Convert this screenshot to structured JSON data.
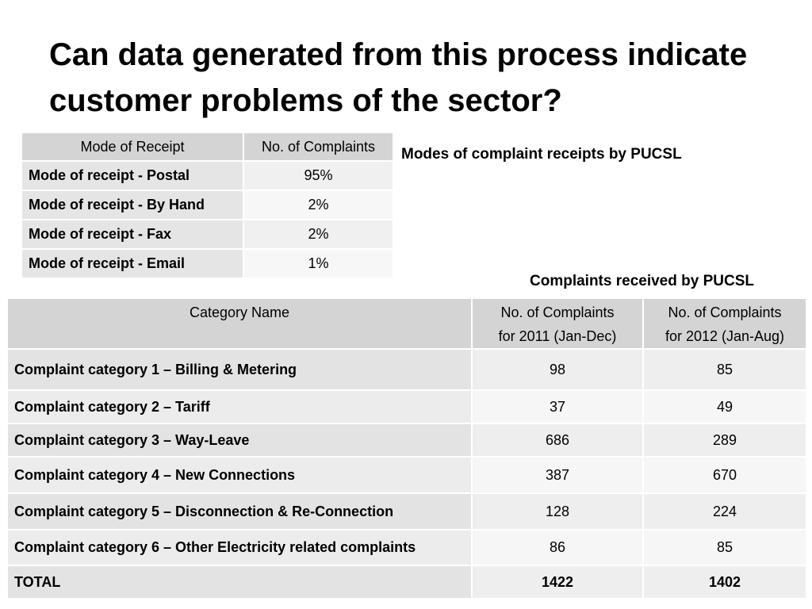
{
  "title": "Can data generated from this process indicate customer problems of the sector?",
  "receipts": {
    "caption": "Modes of complaint receipts by PUCSL",
    "headers": [
      "Mode of Receipt",
      "No. of Complaints"
    ],
    "rows": [
      {
        "mode": "Mode of receipt  - Postal",
        "value": "95%"
      },
      {
        "mode": "Mode of receipt  - By Hand",
        "value": "2%"
      },
      {
        "mode": "Mode of receipt  - Fax",
        "value": "2%"
      },
      {
        "mode": "Mode of receipt  - Email",
        "value": "1%"
      }
    ]
  },
  "complaints": {
    "caption": "Complaints received by PUCSL",
    "headers": {
      "category": "Category Name",
      "col2011_line1": "No. of Complaints",
      "col2011_line2": "for 2011 (Jan-Dec)",
      "col2012_line1": "No. of Complaints",
      "col2012_line2": "for 2012 (Jan-Aug)"
    },
    "rows": [
      {
        "category": "Complaint category 1 – Billing & Metering",
        "y2011": "98",
        "y2012": "85"
      },
      {
        "category": "Complaint category 2 – Tariff",
        "y2011": "37",
        "y2012": "49"
      },
      {
        "category": "Complaint category 3 – Way-Leave",
        "y2011": "686",
        "y2012": "289"
      },
      {
        "category": "Complaint category 4 – New Connections",
        "y2011": "387",
        "y2012": "670"
      },
      {
        "category": "Complaint category 5 – Disconnection & Re-Connection",
        "y2011": "128",
        "y2012": "224"
      },
      {
        "category": "Complaint category 6 – Other Electricity related complaints",
        "y2011": "86",
        "y2012": "85"
      }
    ],
    "total": {
      "category": "TOTAL",
      "y2011": "1422",
      "y2012": "1402"
    }
  }
}
